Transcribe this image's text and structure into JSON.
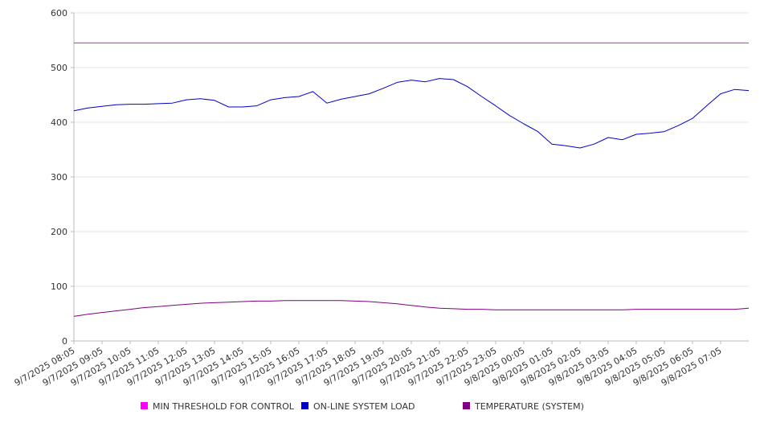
{
  "chart_data": {
    "type": "line",
    "title": "",
    "xlabel": "",
    "ylabel": "",
    "ylim": [
      0,
      600
    ],
    "yticks": [
      "0",
      "100",
      "200",
      "300",
      "400",
      "500",
      "600"
    ],
    "x_tick_labels": [
      "9/7/2025 08:05",
      "9/7/2025 09:05",
      "9/7/2025 10:05",
      "9/7/2025 11:05",
      "9/7/2025 12:05",
      "9/7/2025 13:05",
      "9/7/2025 14:05",
      "9/7/2025 15:05",
      "9/7/2025 16:05",
      "9/7/2025 17:05",
      "9/7/2025 18:05",
      "9/7/2025 19:05",
      "9/7/2025 20:05",
      "9/7/2025 21:05",
      "9/7/2025 22:05",
      "9/7/2025 23:05",
      "9/8/2025 00:05",
      "9/8/2025 01:05",
      "9/8/2025 02:05",
      "9/8/2025 03:05",
      "9/8/2025 04:05",
      "9/8/2025 05:05",
      "9/8/2025 06:05",
      "9/8/2025 07:05"
    ],
    "x_end": "9/8/2025 08:05",
    "grid": true,
    "legend_position": "bottom",
    "x": [
      "9/7/2025 08:05",
      "9/7/2025 08:35",
      "9/7/2025 09:05",
      "9/7/2025 09:35",
      "9/7/2025 10:05",
      "9/7/2025 10:35",
      "9/7/2025 11:05",
      "9/7/2025 11:35",
      "9/7/2025 12:05",
      "9/7/2025 12:35",
      "9/7/2025 13:05",
      "9/7/2025 13:35",
      "9/7/2025 14:05",
      "9/7/2025 14:35",
      "9/7/2025 15:05",
      "9/7/2025 15:35",
      "9/7/2025 16:05",
      "9/7/2025 16:35",
      "9/7/2025 17:05",
      "9/7/2025 17:35",
      "9/7/2025 18:05",
      "9/7/2025 18:35",
      "9/7/2025 19:05",
      "9/7/2025 19:35",
      "9/7/2025 20:05",
      "9/7/2025 20:35",
      "9/7/2025 21:05",
      "9/7/2025 21:35",
      "9/7/2025 22:05",
      "9/7/2025 22:35",
      "9/7/2025 23:05",
      "9/7/2025 23:35",
      "9/8/2025 00:05",
      "9/8/2025 00:35",
      "9/8/2025 01:05",
      "9/8/2025 01:35",
      "9/8/2025 02:05",
      "9/8/2025 02:35",
      "9/8/2025 03:05",
      "9/8/2025 03:35",
      "9/8/2025 04:05",
      "9/8/2025 04:35",
      "9/8/2025 05:05",
      "9/8/2025 05:35",
      "9/8/2025 06:05",
      "9/8/2025 06:35",
      "9/8/2025 07:05",
      "9/8/2025 07:35",
      "9/8/2025 08:05"
    ],
    "series": [
      {
        "name": "MIN THRESHOLD FOR CONTROL",
        "color": "#ff00ff",
        "values": [
          545,
          545,
          545,
          545,
          545,
          545,
          545,
          545,
          545,
          545,
          545,
          545,
          545,
          545,
          545,
          545,
          545,
          545,
          545,
          545,
          545,
          545,
          545,
          545,
          545,
          545,
          545,
          545,
          545,
          545,
          545,
          545,
          545,
          545,
          545,
          545,
          545,
          545,
          545,
          545,
          545,
          545,
          545,
          545,
          545,
          545,
          545,
          545,
          545
        ]
      },
      {
        "name": "ON-LINE SYSTEM LOAD",
        "color": "#0000cc",
        "values": [
          421,
          426,
          429,
          432,
          433,
          433,
          434,
          435,
          441,
          443,
          440,
          428,
          428,
          430,
          441,
          445,
          447,
          456,
          435,
          442,
          447,
          452,
          462,
          473,
          477,
          474,
          480,
          478,
          465,
          447,
          430,
          412,
          397,
          383,
          360,
          357,
          353,
          360,
          372,
          368,
          378,
          380,
          383,
          394,
          407,
          430,
          452,
          460,
          458
        ]
      },
      {
        "name": "TEMPERATURE (SYSTEM)",
        "color": "#800080",
        "values": [
          45,
          49,
          52,
          55,
          58,
          61,
          63,
          65,
          67,
          69,
          70,
          71,
          72,
          73,
          73,
          74,
          74,
          74,
          74,
          74,
          73,
          72,
          70,
          68,
          65,
          62,
          60,
          59,
          58,
          58,
          57,
          57,
          57,
          57,
          57,
          57,
          57,
          57,
          57,
          57,
          58,
          58,
          58,
          58,
          58,
          58,
          58,
          58,
          60
        ]
      }
    ]
  }
}
